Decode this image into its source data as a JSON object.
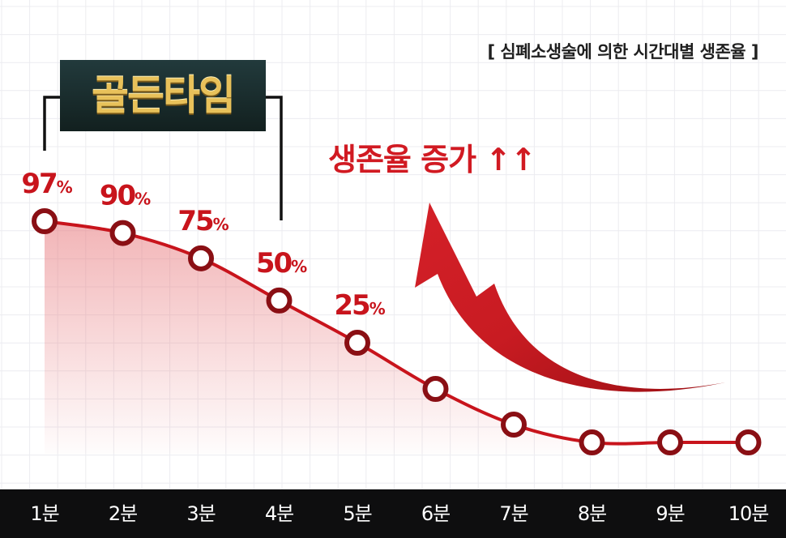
{
  "chart_data": {
    "type": "line",
    "title": "[ 심폐소생술에 의한 시간대별 생존율 ]",
    "categories": [
      "1분",
      "2분",
      "3분",
      "4분",
      "5분",
      "6분",
      "7분",
      "8분",
      "9분",
      "10분"
    ],
    "values": [
      97,
      90,
      75,
      50,
      25,
      null,
      null,
      null,
      null,
      null
    ],
    "data_labels": [
      {
        "index": 0,
        "number": "97",
        "unit": "%"
      },
      {
        "index": 1,
        "number": "90",
        "unit": "%"
      },
      {
        "index": 2,
        "number": "75",
        "unit": "%"
      },
      {
        "index": 3,
        "number": "50",
        "unit": "%"
      },
      {
        "index": 4,
        "number": "25",
        "unit": "%"
      }
    ],
    "grid": true,
    "colors": {
      "line": "#c8141c",
      "marker_fill": "#ffffff",
      "marker_edge": "#8a0f14",
      "area": "#e7777b",
      "annotation": "#d11a22",
      "axis_bar": "#0e0e0f"
    }
  },
  "badge": {
    "label": "골든타임"
  },
  "annotation": {
    "label": "생존율 증가 ↑↑"
  }
}
